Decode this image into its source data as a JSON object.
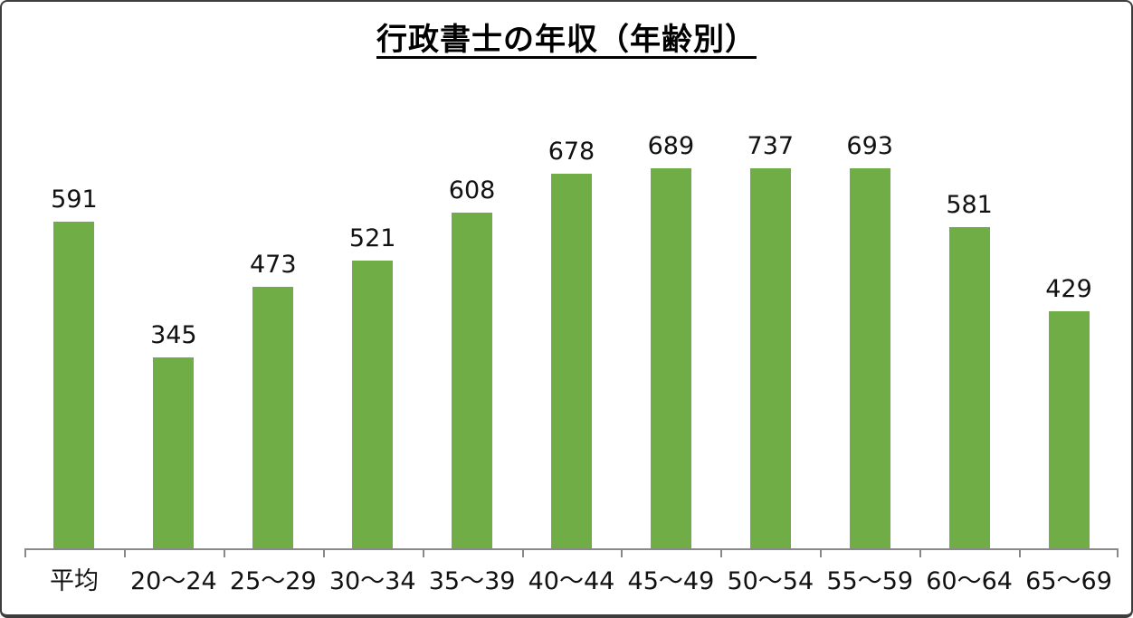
{
  "title": "行政書士の年収（年齢別）",
  "chart_data": {
    "type": "bar",
    "title": "行政書士の年収（年齢別）",
    "categories": [
      "平均",
      "20〜24",
      "25〜29",
      "30〜34",
      "35〜39",
      "40〜44",
      "45〜49",
      "50〜54",
      "55〜59",
      "60〜64",
      "65〜69"
    ],
    "values": [
      591,
      345,
      473,
      521,
      608,
      678,
      689,
      737,
      693,
      581,
      429
    ],
    "xlabel": "",
    "ylabel": "",
    "ylim": [
      0,
      750
    ],
    "grid": false,
    "legend_position": "none",
    "data_labels": true,
    "bar_color": "#70AD47",
    "axis_color": "#898989",
    "label_color": "#111111",
    "background_color": "#ffffff",
    "border_color": "#3d3d3d"
  }
}
